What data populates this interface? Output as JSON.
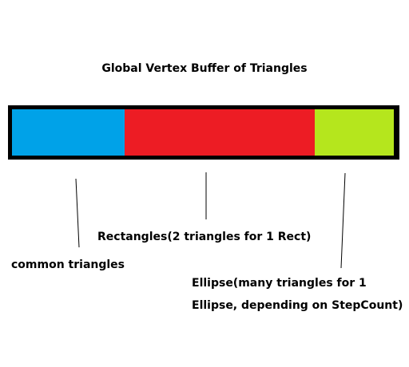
{
  "title": "Global Vertex Buffer of Triangles",
  "segments": [
    {
      "name": "common",
      "color": "#00a2e8"
    },
    {
      "name": "rectangles",
      "color": "#ed1c24"
    },
    {
      "name": "ellipse",
      "color": "#b5e61d"
    }
  ],
  "labels": {
    "common": "common triangles",
    "rectangles": "Rectangles(2 triangles for 1 Rect)",
    "ellipse_line1": "Ellipse(many triangles for 1",
    "ellipse_line2": "Ellipse, depending on StepCount)"
  }
}
